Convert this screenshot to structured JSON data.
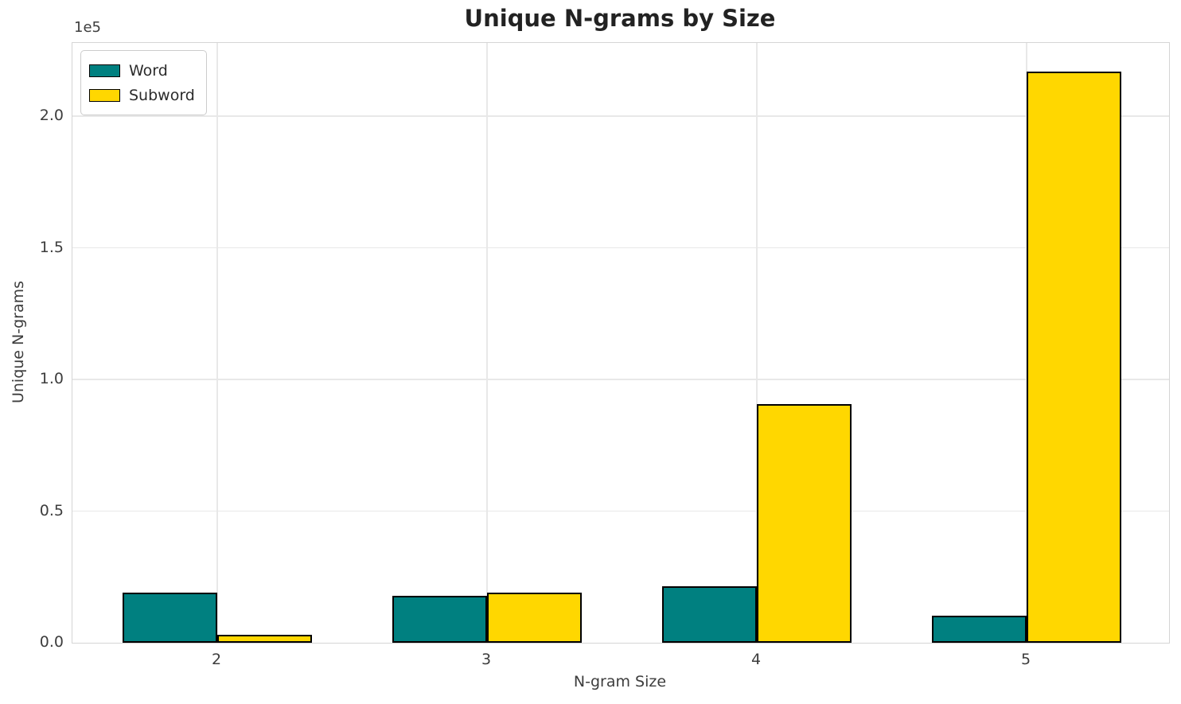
{
  "chart_data": {
    "type": "bar",
    "title": "Unique N-grams by Size",
    "xlabel": "N-gram Size",
    "ylabel": "Unique N-grams",
    "offset_text": "1e5",
    "categories": [
      "2",
      "3",
      "4",
      "5"
    ],
    "series": [
      {
        "name": "Word",
        "color": "#008080",
        "values": [
          19000,
          17800,
          21500,
          10300
        ]
      },
      {
        "name": "Subword",
        "color": "#ffd700",
        "values": [
          2900,
          18900,
          90600,
          217000
        ]
      }
    ],
    "bar_edge_color": "#000000",
    "ylim": [
      0,
      227850
    ],
    "ytick_values": [
      0,
      50000,
      100000,
      150000,
      200000
    ],
    "ytick_labels": [
      "0.0",
      "0.5",
      "1.0",
      "1.5",
      "2.0"
    ],
    "grid": true,
    "legend_position": "upper-left",
    "colors": {
      "background": "#ffffff",
      "grid": "#e8e8e8",
      "spine": "#d5d5d5",
      "tick_text": "#3d3d3d",
      "title_text": "#222222"
    }
  }
}
